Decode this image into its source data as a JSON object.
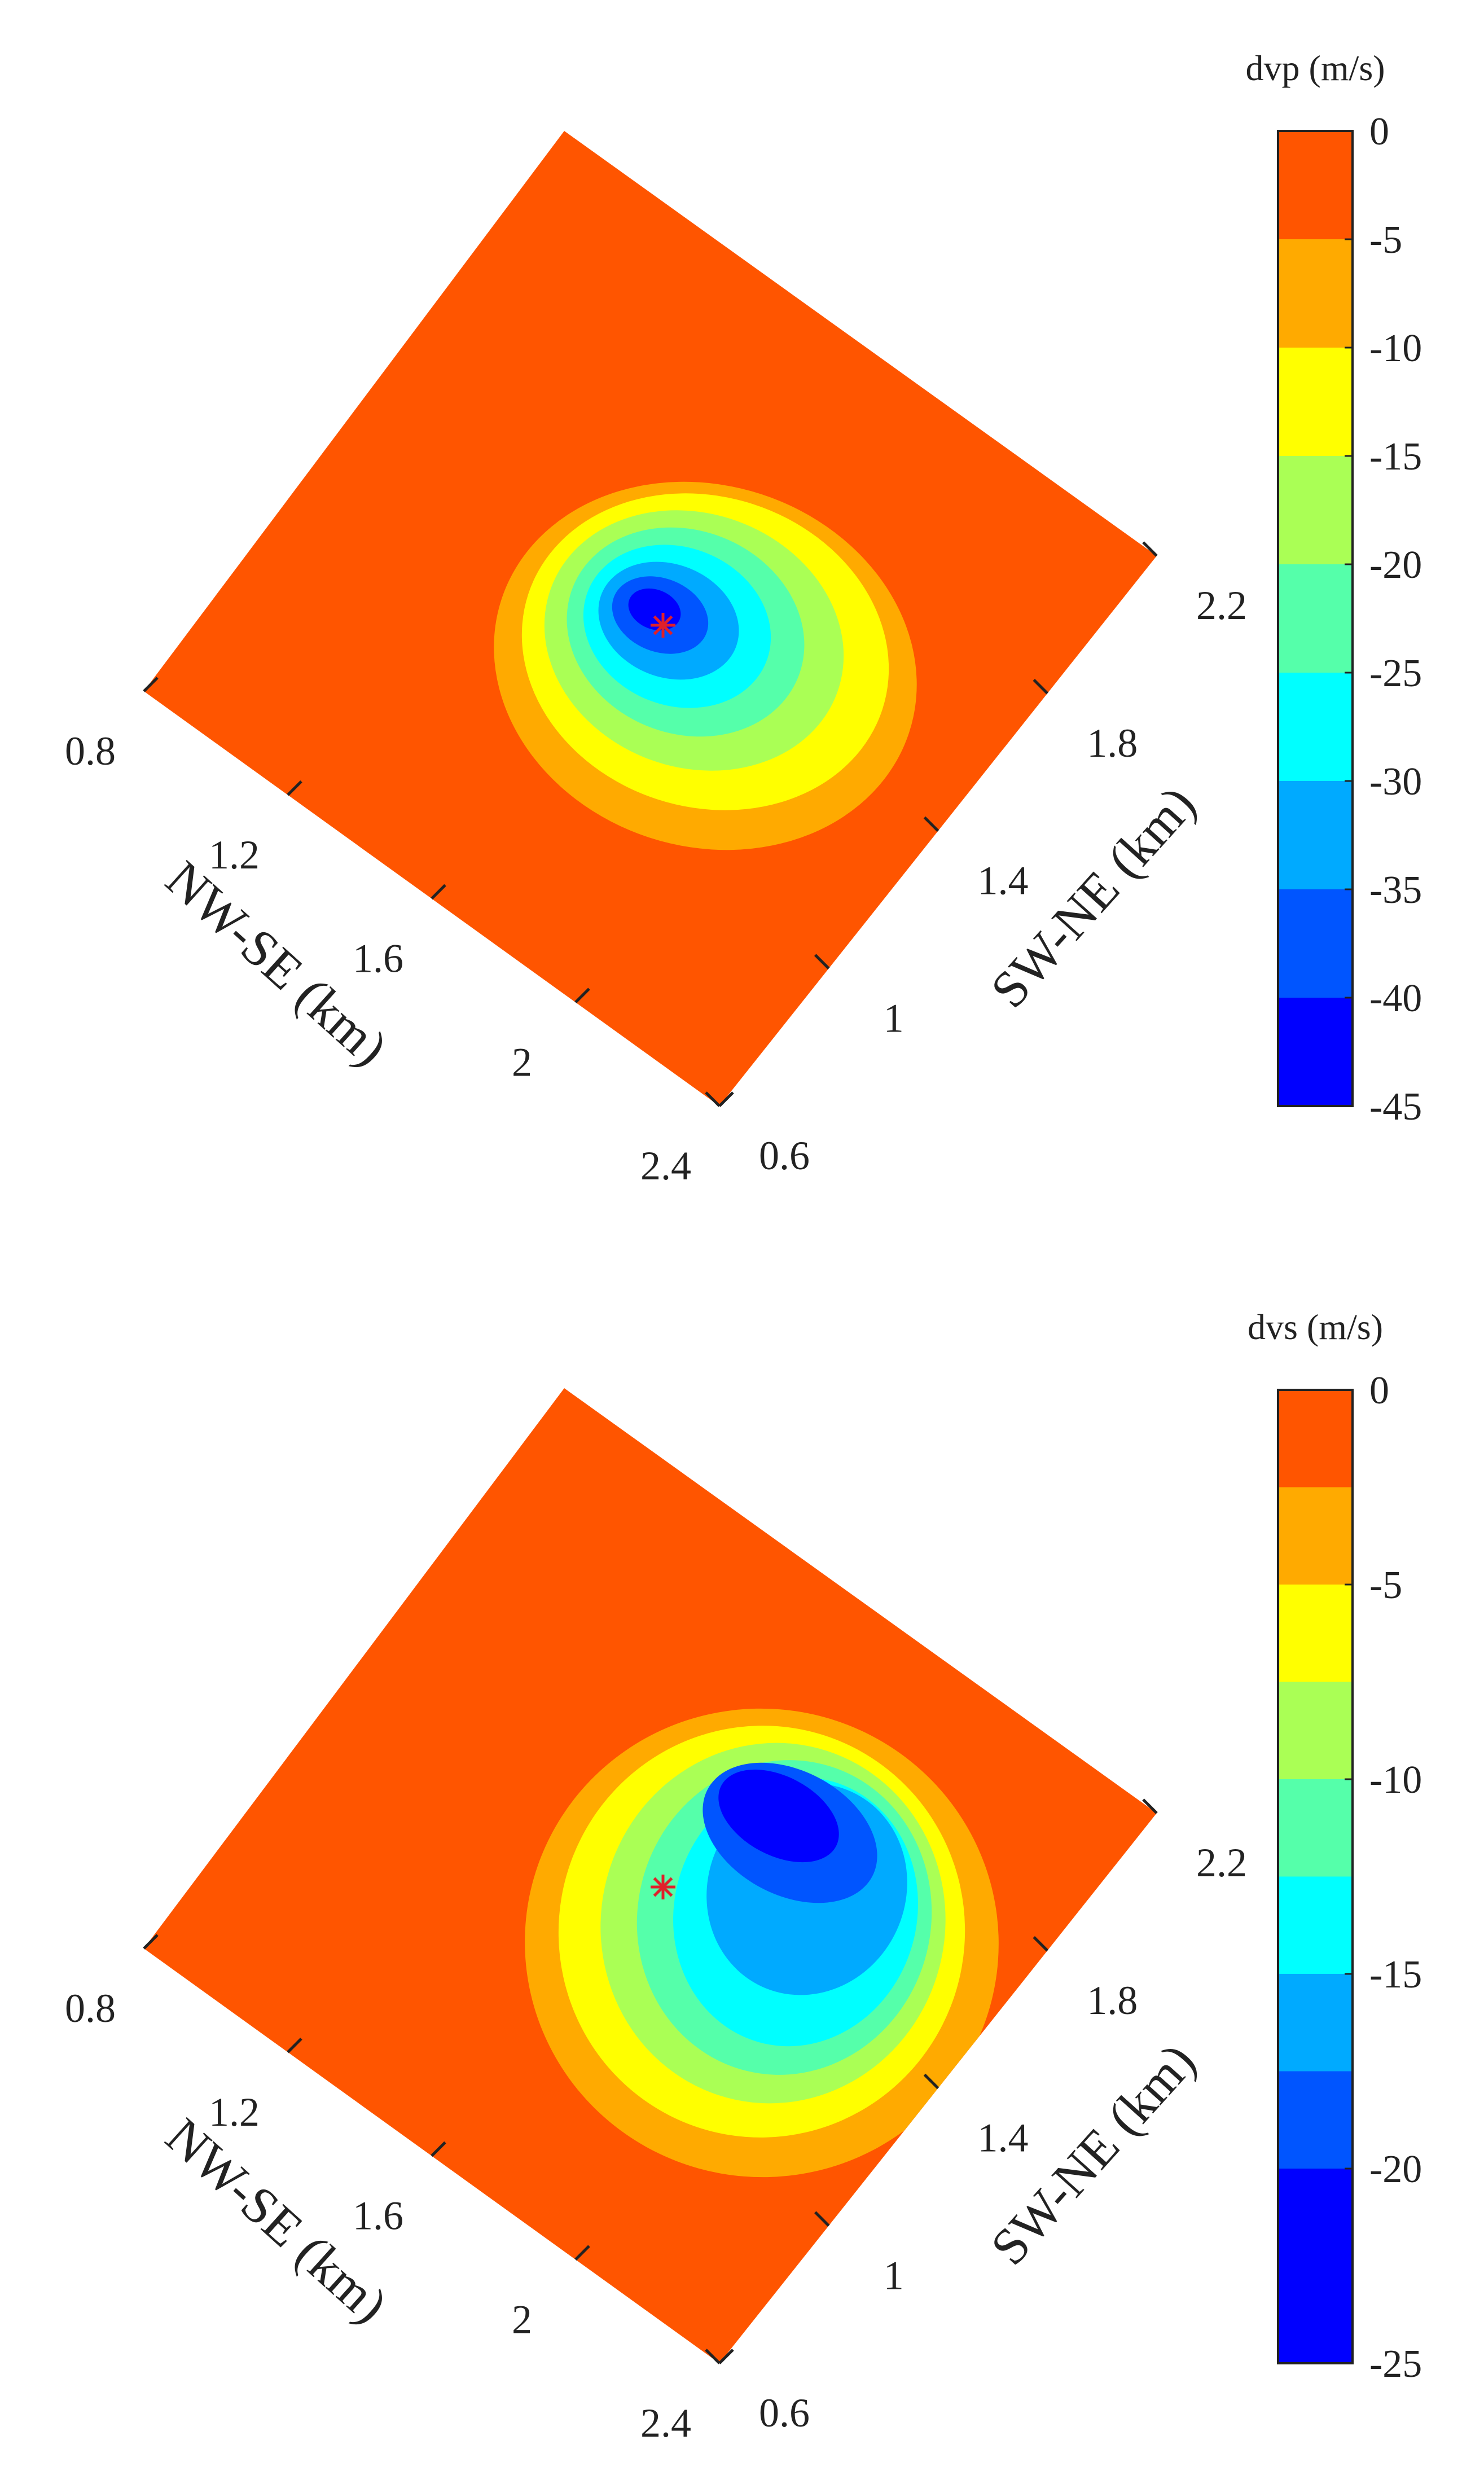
{
  "chart_data": [
    {
      "type": "contour",
      "panel": "top",
      "variable": "dvp",
      "colorbar": {
        "title": "dvp (m/s)",
        "ticks": [
          0,
          -5,
          -10,
          -15,
          -20,
          -25,
          -30,
          -35,
          -40,
          -45
        ],
        "levels": [
          0,
          -5,
          -10,
          -15,
          -20,
          -25,
          -30,
          -35,
          -40,
          -45
        ]
      },
      "axes": {
        "nw_se": {
          "label": "NW-SE (km)",
          "ticks": [
            "0.8",
            "1.2",
            "1.6",
            "2",
            "2.4"
          ],
          "range": [
            0.8,
            2.4
          ]
        },
        "sw_ne": {
          "label": "SW-NE (km)",
          "ticks": [
            "0.6",
            "1",
            "1.4",
            "1.8",
            "2.2"
          ],
          "range": [
            0.6,
            2.2
          ]
        }
      },
      "minimum_value": -45,
      "marker": {
        "symbol": "*",
        "color": "#e0202a"
      }
    },
    {
      "type": "contour",
      "panel": "bottom",
      "variable": "dvs",
      "colorbar": {
        "title": "dvs (m/s)",
        "ticks": [
          0,
          -5,
          -10,
          -15,
          -20,
          -25
        ],
        "levels": [
          0,
          -2.5,
          -5,
          -7.5,
          -10,
          -12.5,
          -15,
          -17.5,
          -20,
          -22.5,
          -25
        ]
      },
      "axes": {
        "nw_se": {
          "label": "NW-SE (km)",
          "ticks": [
            "0.8",
            "1.2",
            "1.6",
            "2",
            "2.4"
          ],
          "range": [
            0.8,
            2.4
          ]
        },
        "sw_ne": {
          "label": "SW-NE (km)",
          "ticks": [
            "0.6",
            "1",
            "1.4",
            "1.8",
            "2.2"
          ],
          "range": [
            0.6,
            2.2
          ]
        }
      },
      "minimum_value": -25,
      "marker": {
        "symbol": "*",
        "color": "#e0202a"
      }
    }
  ],
  "colors": {
    "level_colors": [
      "#ff5500",
      "#ffaa00",
      "#ffff00",
      "#aaff55",
      "#55ffaa",
      "#00ffff",
      "#00aaff",
      "#0055ff",
      "#0000ff"
    ],
    "background": "#ffffff",
    "marker": "#e0202a"
  }
}
